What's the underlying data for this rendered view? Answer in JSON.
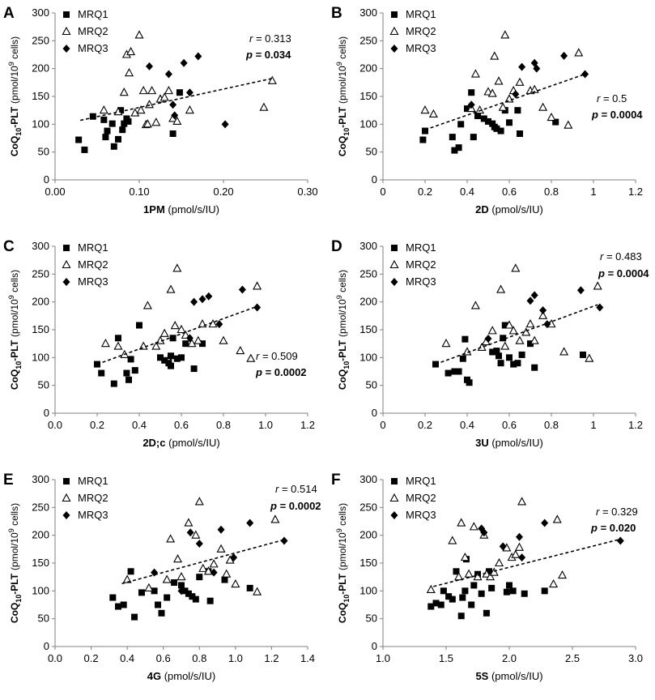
{
  "figure": {
    "y_axis": {
      "prefix": "CoQ",
      "sub": "10",
      "rest": "-PLT",
      "units_prefix": "(pmol/10",
      "units_sup": "9",
      "units_suffix": " cells)"
    },
    "legend": {
      "mrq1": "MRQ1",
      "mrq2": "MRQ2",
      "mrq3": "MRQ3"
    },
    "colors": {
      "marker": "#000000",
      "trend": "#000000"
    }
  },
  "chart_data": [
    {
      "letter": "A",
      "type": "scatter",
      "xlabel_bold": "1PM",
      "xlabel_units": " (pmol/s/IU)",
      "xlim": [
        0,
        0.3
      ],
      "xticks": [
        "0.00",
        "0.10",
        "0.20",
        "0.30"
      ],
      "ylim": [
        0,
        300
      ],
      "yticks": [
        "0",
        "50",
        "100",
        "150",
        "200",
        "250",
        "300"
      ],
      "r_label": "r",
      "r_value": " = 0.313",
      "p_label": "p",
      "p_value": " = 0.034",
      "trend": {
        "x": [
          0.03,
          0.26
        ],
        "y": [
          107,
          183
        ]
      },
      "series": [
        {
          "name": "MRQ1",
          "marker": "square",
          "x": [
            0.028,
            0.035,
            0.045,
            0.058,
            0.06,
            0.062,
            0.068,
            0.07,
            0.075,
            0.078,
            0.08,
            0.082,
            0.085,
            0.087,
            0.14,
            0.148
          ],
          "y": [
            72,
            54,
            114,
            108,
            77,
            88,
            101,
            60,
            73,
            125,
            90,
            101,
            110,
            105,
            83,
            157
          ]
        },
        {
          "name": "MRQ2",
          "marker": "triangle",
          "x": [
            0.058,
            0.075,
            0.082,
            0.085,
            0.088,
            0.09,
            0.095,
            0.1,
            0.102,
            0.105,
            0.108,
            0.11,
            0.112,
            0.115,
            0.12,
            0.125,
            0.13,
            0.135,
            0.14,
            0.145,
            0.16,
            0.248,
            0.258
          ],
          "y": [
            125,
            122,
            157,
            225,
            192,
            230,
            120,
            260,
            125,
            160,
            99,
            100,
            135,
            160,
            103,
            145,
            148,
            160,
            110,
            105,
            125,
            130,
            178
          ]
        },
        {
          "name": "MRQ3",
          "marker": "diamond",
          "x": [
            0.112,
            0.135,
            0.14,
            0.142,
            0.153,
            0.16,
            0.17,
            0.202
          ],
          "y": [
            204,
            190,
            135,
            116,
            210,
            157,
            222,
            100
          ]
        }
      ]
    },
    {
      "letter": "B",
      "type": "scatter",
      "xlabel_bold": "2D",
      "xlabel_units": " (pmol/s/IU)",
      "xlim": [
        0,
        1.2
      ],
      "xticks": [
        "0",
        "0.2",
        "0.4",
        "0.6",
        "0.8",
        "1",
        "1.2"
      ],
      "ylim": [
        0,
        300
      ],
      "yticks": [
        "0",
        "50",
        "100",
        "150",
        "200",
        "250",
        "300"
      ],
      "r_label": "r",
      "r_value": " = 0.5",
      "p_label": "p",
      "p_value": " = 0.0004",
      "trend": {
        "x": [
          0.2,
          0.96
        ],
        "y": [
          90,
          190
        ]
      },
      "series": [
        {
          "name": "MRQ1",
          "marker": "square",
          "x": [
            0.19,
            0.2,
            0.33,
            0.34,
            0.36,
            0.37,
            0.4,
            0.42,
            0.43,
            0.45,
            0.48,
            0.5,
            0.52,
            0.53,
            0.54,
            0.56,
            0.58,
            0.6,
            0.64,
            0.65,
            0.82
          ],
          "y": [
            72,
            88,
            77,
            53,
            58,
            100,
            128,
            157,
            77,
            115,
            110,
            105,
            101,
            95,
            92,
            88,
            125,
            103,
            125,
            83,
            104
          ]
        },
        {
          "name": "MRQ2",
          "marker": "triangle",
          "x": [
            0.2,
            0.24,
            0.42,
            0.44,
            0.46,
            0.5,
            0.52,
            0.53,
            0.55,
            0.57,
            0.58,
            0.6,
            0.62,
            0.65,
            0.7,
            0.72,
            0.76,
            0.8,
            0.88,
            0.93
          ],
          "y": [
            125,
            118,
            128,
            190,
            125,
            158,
            155,
            222,
            177,
            130,
            260,
            145,
            160,
            175,
            160,
            162,
            130,
            112,
            98,
            228
          ]
        },
        {
          "name": "MRQ3",
          "marker": "diamond",
          "x": [
            0.42,
            0.63,
            0.66,
            0.72,
            0.73,
            0.86,
            0.96
          ],
          "y": [
            135,
            154,
            203,
            210,
            200,
            223,
            190
          ]
        }
      ]
    },
    {
      "letter": "C",
      "type": "scatter",
      "xlabel_bold": "2D;c",
      "xlabel_units": " (pmol/s/IU)",
      "xlim": [
        0,
        1.2
      ],
      "xticks": [
        "0.0",
        "0.2",
        "0.4",
        "0.6",
        "0.8",
        "1.0",
        "1.2"
      ],
      "ylim": [
        0,
        300
      ],
      "yticks": [
        "0",
        "50",
        "100",
        "150",
        "200",
        "250",
        "300"
      ],
      "r_label": "r",
      "r_value": " = 0.509",
      "p_label": "p",
      "p_value": " = 0.0002",
      "trend": {
        "x": [
          0.2,
          0.96
        ],
        "y": [
          88,
          192
        ]
      },
      "series": [
        {
          "name": "MRQ1",
          "marker": "square",
          "x": [
            0.2,
            0.22,
            0.28,
            0.3,
            0.34,
            0.35,
            0.36,
            0.38,
            0.4,
            0.5,
            0.52,
            0.54,
            0.55,
            0.55,
            0.56,
            0.58,
            0.6,
            0.62,
            0.66,
            0.7
          ],
          "y": [
            88,
            72,
            53,
            135,
            72,
            60,
            97,
            77,
            158,
            100,
            95,
            90,
            85,
            103,
            135,
            98,
            100,
            125,
            80,
            125
          ]
        },
        {
          "name": "MRQ2",
          "marker": "triangle",
          "x": [
            0.24,
            0.3,
            0.33,
            0.42,
            0.44,
            0.48,
            0.5,
            0.52,
            0.55,
            0.57,
            0.58,
            0.6,
            0.62,
            0.65,
            0.68,
            0.7,
            0.75,
            0.8,
            0.88,
            0.93,
            0.96
          ],
          "y": [
            125,
            120,
            105,
            120,
            193,
            120,
            130,
            143,
            222,
            157,
            260,
            150,
            140,
            125,
            130,
            160,
            160,
            130,
            112,
            98,
            228
          ]
        },
        {
          "name": "MRQ3",
          "marker": "diamond",
          "x": [
            0.55,
            0.64,
            0.66,
            0.7,
            0.73,
            0.78,
            0.89,
            0.96
          ],
          "y": [
            102,
            135,
            200,
            205,
            210,
            160,
            222,
            190
          ]
        }
      ]
    },
    {
      "letter": "D",
      "type": "scatter",
      "xlabel_bold": "3U",
      "xlabel_units": " (pmol/s/IU)",
      "xlim": [
        0,
        1.2
      ],
      "xticks": [
        "0",
        "0.2",
        "0.4",
        "0.6",
        "0.8",
        "1",
        "1.2"
      ],
      "ylim": [
        0,
        300
      ],
      "yticks": [
        "0",
        "50",
        "100",
        "150",
        "200",
        "250",
        "300"
      ],
      "r_label": "r",
      "r_value": " = 0.483",
      "p_label": "p",
      "p_value": " = 0.0004",
      "trend": {
        "x": [
          0.25,
          1.02
        ],
        "y": [
          88,
          195
        ]
      },
      "series": [
        {
          "name": "MRQ1",
          "marker": "square",
          "x": [
            0.25,
            0.31,
            0.34,
            0.36,
            0.38,
            0.39,
            0.4,
            0.41,
            0.52,
            0.54,
            0.55,
            0.56,
            0.57,
            0.58,
            0.6,
            0.62,
            0.64,
            0.66,
            0.7,
            0.72,
            0.95
          ],
          "y": [
            88,
            72,
            75,
            75,
            98,
            133,
            60,
            55,
            110,
            112,
            103,
            90,
            135,
            158,
            100,
            88,
            90,
            105,
            125,
            82,
            105
          ]
        },
        {
          "name": "MRQ2",
          "marker": "triangle",
          "x": [
            0.3,
            0.4,
            0.44,
            0.47,
            0.49,
            0.52,
            0.56,
            0.58,
            0.6,
            0.62,
            0.63,
            0.65,
            0.68,
            0.7,
            0.72,
            0.76,
            0.8,
            0.86,
            0.98,
            1.02
          ],
          "y": [
            125,
            110,
            193,
            118,
            128,
            148,
            222,
            120,
            158,
            148,
            260,
            130,
            145,
            160,
            130,
            175,
            160,
            110,
            98,
            228
          ]
        },
        {
          "name": "MRQ3",
          "marker": "diamond",
          "x": [
            0.5,
            0.7,
            0.72,
            0.76,
            0.78,
            0.94,
            1.03
          ],
          "y": [
            134,
            202,
            212,
            185,
            160,
            221,
            190
          ]
        }
      ]
    },
    {
      "letter": "E",
      "type": "scatter",
      "xlabel_bold": "4G",
      "xlabel_units": " (pmol/s/IU)",
      "xlim": [
        0,
        1.4
      ],
      "xticks": [
        "0.0",
        "0.2",
        "0.4",
        "0.6",
        "0.8",
        "1.0",
        "1.2",
        "1.4"
      ],
      "ylim": [
        0,
        300
      ],
      "yticks": [
        "0",
        "50",
        "100",
        "150",
        "200",
        "250",
        "300"
      ],
      "r_label": "r",
      "r_value": " = 0.514",
      "p_label": "p",
      "p_value": " = 0.0002",
      "trend": {
        "x": [
          0.37,
          1.27
        ],
        "y": [
          113,
          192
        ]
      },
      "series": [
        {
          "name": "MRQ1",
          "marker": "square",
          "x": [
            0.32,
            0.35,
            0.38,
            0.42,
            0.44,
            0.48,
            0.55,
            0.57,
            0.59,
            0.62,
            0.66,
            0.7,
            0.72,
            0.74,
            0.76,
            0.78,
            0.8,
            0.85,
            0.86,
            0.94,
            1.08
          ],
          "y": [
            88,
            72,
            75,
            135,
            53,
            97,
            100,
            75,
            60,
            88,
            115,
            110,
            100,
            95,
            90,
            85,
            125,
            135,
            82,
            120,
            105
          ]
        },
        {
          "name": "MRQ2",
          "marker": "triangle",
          "x": [
            0.4,
            0.52,
            0.62,
            0.64,
            0.68,
            0.7,
            0.74,
            0.78,
            0.8,
            0.82,
            0.85,
            0.88,
            0.92,
            0.95,
            0.97,
            1.0,
            1.12,
            1.22
          ],
          "y": [
            120,
            105,
            120,
            193,
            157,
            125,
            222,
            200,
            260,
            140,
            135,
            148,
            175,
            130,
            155,
            112,
            98,
            228
          ]
        },
        {
          "name": "MRQ3",
          "marker": "diamond",
          "x": [
            0.55,
            0.7,
            0.75,
            0.8,
            0.88,
            0.92,
            0.99,
            1.08,
            1.27
          ],
          "y": [
            133,
            100,
            205,
            185,
            133,
            210,
            160,
            222,
            190
          ]
        }
      ]
    },
    {
      "letter": "F",
      "type": "scatter",
      "xlabel_bold": "5S",
      "xlabel_units": " (pmol/s/IU)",
      "xlim": [
        1.0,
        3.0
      ],
      "xticks": [
        "1.0",
        "1.5",
        "2.0",
        "2.5",
        "3.0"
      ],
      "ylim": [
        0,
        300
      ],
      "yticks": [
        "0",
        "50",
        "100",
        "150",
        "200",
        "250",
        "300"
      ],
      "r_label": "r",
      "r_value": " = 0.329",
      "p_label": "p",
      "p_value": " = 0.020",
      "trend": {
        "x": [
          1.4,
          2.88
        ],
        "y": [
          108,
          193
        ]
      },
      "series": [
        {
          "name": "MRQ1",
          "marker": "square",
          "x": [
            1.38,
            1.42,
            1.46,
            1.48,
            1.52,
            1.55,
            1.58,
            1.62,
            1.63,
            1.65,
            1.66,
            1.7,
            1.72,
            1.75,
            1.78,
            1.82,
            1.84,
            1.86,
            1.98,
            2.0,
            2.03,
            2.12,
            2.28
          ],
          "y": [
            72,
            78,
            75,
            100,
            90,
            85,
            135,
            55,
            88,
            100,
            157,
            75,
            110,
            130,
            95,
            60,
            135,
            105,
            98,
            110,
            100,
            95,
            100
          ]
        },
        {
          "name": "MRQ2",
          "marker": "triangle",
          "x": [
            1.38,
            1.55,
            1.6,
            1.62,
            1.65,
            1.68,
            1.72,
            1.75,
            1.8,
            1.82,
            1.85,
            1.88,
            1.92,
            1.98,
            2.02,
            2.05,
            2.08,
            2.1,
            2.35,
            2.38,
            2.42
          ],
          "y": [
            102,
            190,
            125,
            222,
            160,
            130,
            215,
            125,
            200,
            130,
            125,
            133,
            150,
            177,
            160,
            165,
            178,
            260,
            112,
            228,
            128
          ]
        },
        {
          "name": "MRQ3",
          "marker": "diamond",
          "x": [
            1.78,
            1.8,
            1.95,
            2.08,
            2.1,
            2.28,
            2.88
          ],
          "y": [
            212,
            205,
            180,
            197,
            160,
            222,
            190
          ]
        }
      ]
    }
  ]
}
